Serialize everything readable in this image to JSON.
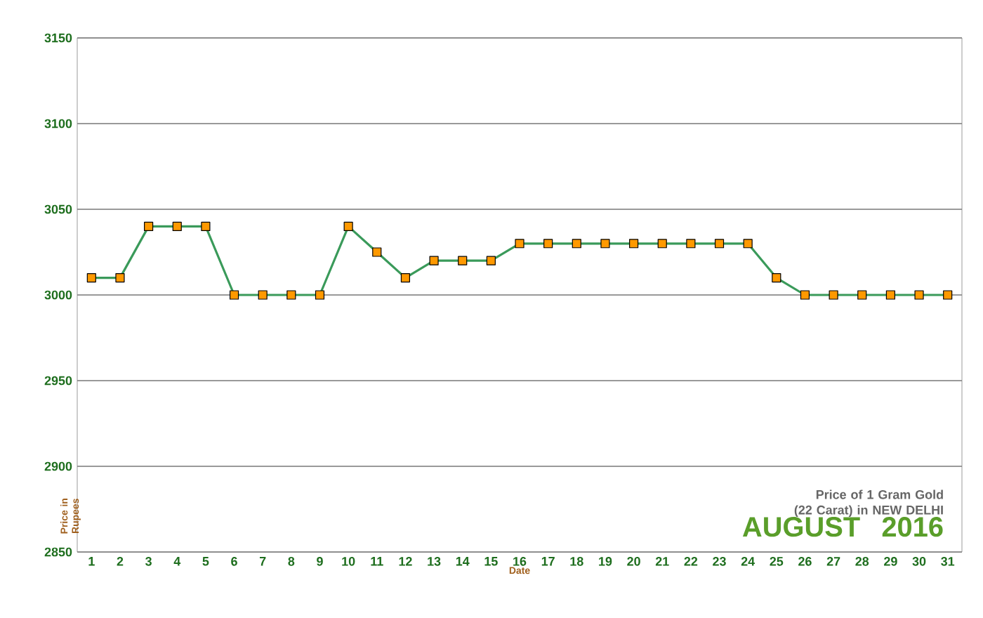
{
  "chart_data": {
    "type": "line",
    "title": "Price of 1 Gram Gold (22 Carat) in NEW DELHI",
    "subtitle": "AUGUST 2016",
    "xlabel": "Date",
    "ylabel": "Price in Rupees",
    "categories": [
      "1",
      "2",
      "3",
      "4",
      "5",
      "6",
      "7",
      "8",
      "9",
      "10",
      "11",
      "12",
      "13",
      "14",
      "15",
      "16",
      "17",
      "18",
      "19",
      "20",
      "21",
      "22",
      "23",
      "24",
      "25",
      "26",
      "27",
      "28",
      "29",
      "30",
      "31"
    ],
    "series": [
      {
        "color": "#3a9a5a",
        "values": [
          3010,
          3010,
          3040,
          3040,
          3040,
          3000,
          3000,
          3000,
          3000,
          3040,
          3025,
          3010,
          3020,
          3020,
          3020,
          3030,
          3030,
          3030,
          3030,
          3030,
          3030,
          3030,
          3030,
          3030,
          3010,
          3000,
          3000,
          3000,
          3000,
          3000,
          3000
        ]
      }
    ],
    "ylim": [
      2850,
      3150
    ],
    "yticks": [
      2850,
      2900,
      2950,
      3000,
      3050,
      3100,
      3150
    ],
    "grid": "y",
    "marker": "square",
    "line_style": "solid"
  }
}
